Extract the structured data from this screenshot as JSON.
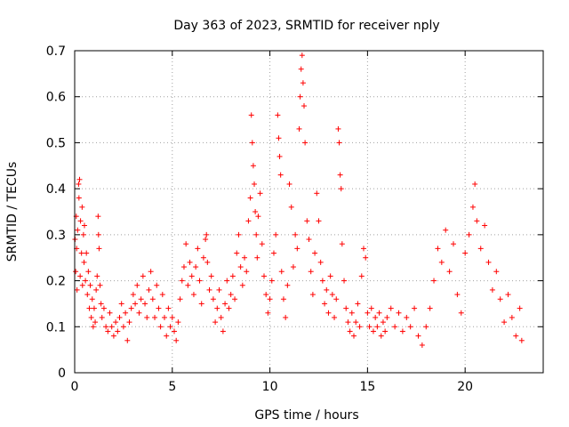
{
  "chart_data": {
    "type": "scatter",
    "title": "Day 363 of 2023, SRMTID for receiver nply",
    "xlabel": "GPS time / hours",
    "ylabel": "SRMTID / TECUs",
    "xlim": [
      0,
      24
    ],
    "ylim": [
      0,
      0.7
    ],
    "xticks": [
      0,
      5,
      10,
      15,
      20
    ],
    "xtick_labels": [
      "0",
      "5",
      "10",
      "15",
      "20"
    ],
    "yticks": [
      0,
      0.1,
      0.2,
      0.3,
      0.4,
      0.5,
      0.6,
      0.7
    ],
    "ytick_labels": [
      "0",
      "0.1",
      "0.2",
      "0.3",
      "0.4",
      "0.5",
      "0.6",
      "0.7"
    ],
    "grid": true,
    "marker": "+",
    "color": "#ff0000",
    "series": [
      {
        "name": "SRMTID",
        "points": [
          [
            0.02,
            0.29
          ],
          [
            0.05,
            0.22
          ],
          [
            0.08,
            0.34
          ],
          [
            0.1,
            0.27
          ],
          [
            0.12,
            0.18
          ],
          [
            0.15,
            0.31
          ],
          [
            0.2,
            0.41
          ],
          [
            0.22,
            0.38
          ],
          [
            0.25,
            0.42
          ],
          [
            0.28,
            0.21
          ],
          [
            0.3,
            0.33
          ],
          [
            0.35,
            0.26
          ],
          [
            0.38,
            0.36
          ],
          [
            0.4,
            0.19
          ],
          [
            0.45,
            0.3
          ],
          [
            0.48,
            0.24
          ],
          [
            0.5,
            0.32
          ],
          [
            0.55,
            0.2
          ],
          [
            0.6,
            0.26
          ],
          [
            0.65,
            0.17
          ],
          [
            0.7,
            0.22
          ],
          [
            0.75,
            0.14
          ],
          [
            0.8,
            0.19
          ],
          [
            0.85,
            0.12
          ],
          [
            0.9,
            0.16
          ],
          [
            0.95,
            0.1
          ],
          [
            1.0,
            0.14
          ],
          [
            1.05,
            0.11
          ],
          [
            1.1,
            0.18
          ],
          [
            1.15,
            0.21
          ],
          [
            1.2,
            0.34
          ],
          [
            1.22,
            0.3
          ],
          [
            1.25,
            0.27
          ],
          [
            1.3,
            0.19
          ],
          [
            1.35,
            0.15
          ],
          [
            1.4,
            0.12
          ],
          [
            1.5,
            0.14
          ],
          [
            1.6,
            0.1
          ],
          [
            1.7,
            0.09
          ],
          [
            1.8,
            0.13
          ],
          [
            1.9,
            0.1
          ],
          [
            2.0,
            0.08
          ],
          [
            2.1,
            0.11
          ],
          [
            2.2,
            0.09
          ],
          [
            2.3,
            0.12
          ],
          [
            2.4,
            0.15
          ],
          [
            2.5,
            0.1
          ],
          [
            2.6,
            0.13
          ],
          [
            2.7,
            0.07
          ],
          [
            2.8,
            0.11
          ],
          [
            2.9,
            0.14
          ],
          [
            3.0,
            0.17
          ],
          [
            3.1,
            0.15
          ],
          [
            3.2,
            0.19
          ],
          [
            3.3,
            0.13
          ],
          [
            3.4,
            0.16
          ],
          [
            3.5,
            0.21
          ],
          [
            3.6,
            0.15
          ],
          [
            3.7,
            0.12
          ],
          [
            3.8,
            0.18
          ],
          [
            3.9,
            0.22
          ],
          [
            4.0,
            0.16
          ],
          [
            4.1,
            0.12
          ],
          [
            4.2,
            0.19
          ],
          [
            4.3,
            0.14
          ],
          [
            4.4,
            0.1
          ],
          [
            4.5,
            0.17
          ],
          [
            4.6,
            0.12
          ],
          [
            4.7,
            0.08
          ],
          [
            4.8,
            0.14
          ],
          [
            4.9,
            0.1
          ],
          [
            5.0,
            0.12
          ],
          [
            5.1,
            0.09
          ],
          [
            5.2,
            0.07
          ],
          [
            5.3,
            0.11
          ],
          [
            5.4,
            0.16
          ],
          [
            5.5,
            0.2
          ],
          [
            5.6,
            0.23
          ],
          [
            5.7,
            0.28
          ],
          [
            5.8,
            0.19
          ],
          [
            5.9,
            0.24
          ],
          [
            6.0,
            0.21
          ],
          [
            6.1,
            0.17
          ],
          [
            6.2,
            0.23
          ],
          [
            6.3,
            0.27
          ],
          [
            6.4,
            0.2
          ],
          [
            6.5,
            0.15
          ],
          [
            6.6,
            0.25
          ],
          [
            6.7,
            0.29
          ],
          [
            6.75,
            0.3
          ],
          [
            6.8,
            0.24
          ],
          [
            6.9,
            0.18
          ],
          [
            7.0,
            0.21
          ],
          [
            7.1,
            0.16
          ],
          [
            7.2,
            0.11
          ],
          [
            7.3,
            0.14
          ],
          [
            7.4,
            0.18
          ],
          [
            7.5,
            0.12
          ],
          [
            7.6,
            0.09
          ],
          [
            7.7,
            0.15
          ],
          [
            7.8,
            0.2
          ],
          [
            7.9,
            0.14
          ],
          [
            8.0,
            0.17
          ],
          [
            8.1,
            0.21
          ],
          [
            8.2,
            0.16
          ],
          [
            8.3,
            0.26
          ],
          [
            8.4,
            0.3
          ],
          [
            8.5,
            0.23
          ],
          [
            8.6,
            0.19
          ],
          [
            8.7,
            0.25
          ],
          [
            8.8,
            0.22
          ],
          [
            8.9,
            0.33
          ],
          [
            9.0,
            0.38
          ],
          [
            9.05,
            0.56
          ],
          [
            9.1,
            0.5
          ],
          [
            9.15,
            0.45
          ],
          [
            9.2,
            0.41
          ],
          [
            9.25,
            0.35
          ],
          [
            9.3,
            0.3
          ],
          [
            9.35,
            0.25
          ],
          [
            9.4,
            0.34
          ],
          [
            9.5,
            0.39
          ],
          [
            9.6,
            0.28
          ],
          [
            9.7,
            0.21
          ],
          [
            9.8,
            0.17
          ],
          [
            9.9,
            0.13
          ],
          [
            10.0,
            0.16
          ],
          [
            10.1,
            0.2
          ],
          [
            10.2,
            0.26
          ],
          [
            10.3,
            0.3
          ],
          [
            10.4,
            0.56
          ],
          [
            10.45,
            0.51
          ],
          [
            10.5,
            0.47
          ],
          [
            10.55,
            0.43
          ],
          [
            10.6,
            0.22
          ],
          [
            10.7,
            0.16
          ],
          [
            10.8,
            0.12
          ],
          [
            10.9,
            0.19
          ],
          [
            11.0,
            0.41
          ],
          [
            11.1,
            0.36
          ],
          [
            11.2,
            0.23
          ],
          [
            11.3,
            0.3
          ],
          [
            11.4,
            0.27
          ],
          [
            11.5,
            0.53
          ],
          [
            11.55,
            0.6
          ],
          [
            11.6,
            0.66
          ],
          [
            11.65,
            0.69
          ],
          [
            11.7,
            0.63
          ],
          [
            11.75,
            0.58
          ],
          [
            11.8,
            0.5
          ],
          [
            11.9,
            0.33
          ],
          [
            12.0,
            0.29
          ],
          [
            12.1,
            0.22
          ],
          [
            12.2,
            0.17
          ],
          [
            12.3,
            0.26
          ],
          [
            12.4,
            0.39
          ],
          [
            12.5,
            0.33
          ],
          [
            12.6,
            0.24
          ],
          [
            12.7,
            0.2
          ],
          [
            12.8,
            0.15
          ],
          [
            12.9,
            0.18
          ],
          [
            13.0,
            0.13
          ],
          [
            13.1,
            0.21
          ],
          [
            13.2,
            0.17
          ],
          [
            13.3,
            0.12
          ],
          [
            13.4,
            0.16
          ],
          [
            13.5,
            0.53
          ],
          [
            13.55,
            0.5
          ],
          [
            13.6,
            0.43
          ],
          [
            13.65,
            0.4
          ],
          [
            13.7,
            0.28
          ],
          [
            13.8,
            0.2
          ],
          [
            13.9,
            0.14
          ],
          [
            14.0,
            0.11
          ],
          [
            14.1,
            0.09
          ],
          [
            14.2,
            0.13
          ],
          [
            14.3,
            0.08
          ],
          [
            14.4,
            0.11
          ],
          [
            14.5,
            0.15
          ],
          [
            14.6,
            0.1
          ],
          [
            14.7,
            0.21
          ],
          [
            14.8,
            0.27
          ],
          [
            14.9,
            0.25
          ],
          [
            15.0,
            0.13
          ],
          [
            15.1,
            0.1
          ],
          [
            15.2,
            0.14
          ],
          [
            15.3,
            0.09
          ],
          [
            15.4,
            0.12
          ],
          [
            15.5,
            0.1
          ],
          [
            15.6,
            0.13
          ],
          [
            15.7,
            0.08
          ],
          [
            15.8,
            0.11
          ],
          [
            15.9,
            0.09
          ],
          [
            16.0,
            0.12
          ],
          [
            16.2,
            0.14
          ],
          [
            16.4,
            0.1
          ],
          [
            16.6,
            0.13
          ],
          [
            16.8,
            0.09
          ],
          [
            17.0,
            0.12
          ],
          [
            17.2,
            0.1
          ],
          [
            17.4,
            0.14
          ],
          [
            17.6,
            0.08
          ],
          [
            17.8,
            0.06
          ],
          [
            18.0,
            0.1
          ],
          [
            18.2,
            0.14
          ],
          [
            18.4,
            0.2
          ],
          [
            18.6,
            0.27
          ],
          [
            18.8,
            0.24
          ],
          [
            19.0,
            0.31
          ],
          [
            19.2,
            0.22
          ],
          [
            19.4,
            0.28
          ],
          [
            19.6,
            0.17
          ],
          [
            19.8,
            0.13
          ],
          [
            20.0,
            0.26
          ],
          [
            20.2,
            0.3
          ],
          [
            20.4,
            0.36
          ],
          [
            20.5,
            0.41
          ],
          [
            20.6,
            0.33
          ],
          [
            20.8,
            0.27
          ],
          [
            21.0,
            0.32
          ],
          [
            21.2,
            0.24
          ],
          [
            21.4,
            0.18
          ],
          [
            21.6,
            0.22
          ],
          [
            21.8,
            0.16
          ],
          [
            22.0,
            0.11
          ],
          [
            22.2,
            0.17
          ],
          [
            22.4,
            0.12
          ],
          [
            22.6,
            0.08
          ],
          [
            22.8,
            0.14
          ],
          [
            22.9,
            0.07
          ]
        ]
      }
    ]
  }
}
